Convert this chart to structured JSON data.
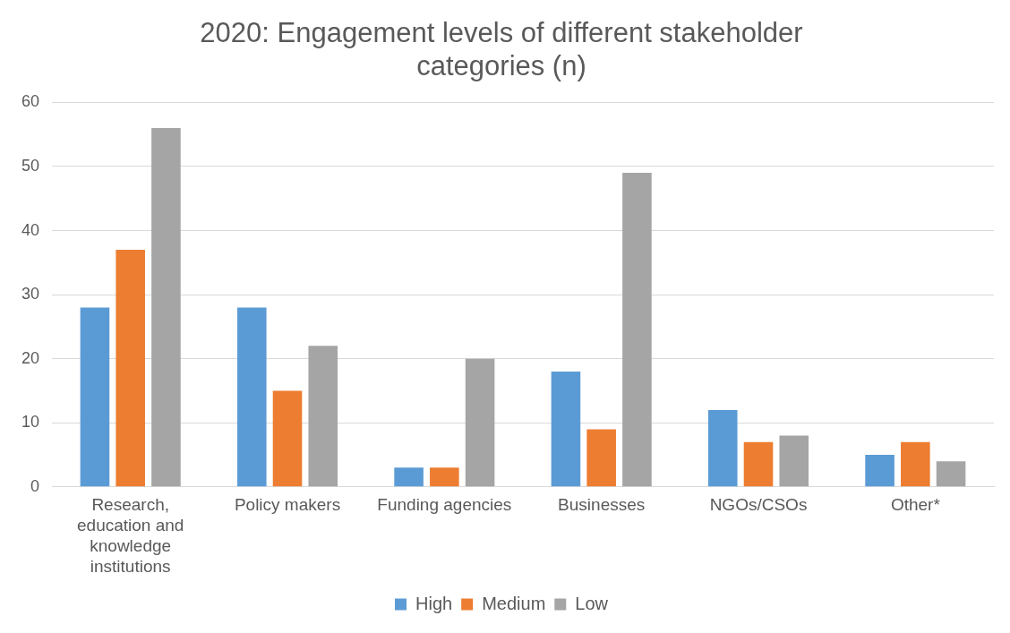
{
  "chart_data": {
    "type": "bar",
    "title": "2020: Engagement levels of different stakeholder categories (n)",
    "categories": [
      "Research, education and knowledge institutions",
      "Policy makers",
      "Funding agencies",
      "Businesses",
      "NGOs/CSOs",
      "Other*"
    ],
    "series": [
      {
        "name": "High",
        "color": "#5b9bd5",
        "values": [
          28,
          28,
          3,
          18,
          12,
          5
        ]
      },
      {
        "name": "Medium",
        "color": "#ed7d31",
        "values": [
          37,
          15,
          3,
          9,
          7,
          7
        ]
      },
      {
        "name": "Low",
        "color": "#a5a5a5",
        "values": [
          56,
          22,
          20,
          49,
          8,
          4
        ]
      }
    ],
    "ylim": [
      0,
      60
    ],
    "yticks": [
      0,
      10,
      20,
      30,
      40,
      50,
      60
    ],
    "grid": "y",
    "legend": "bottom"
  }
}
